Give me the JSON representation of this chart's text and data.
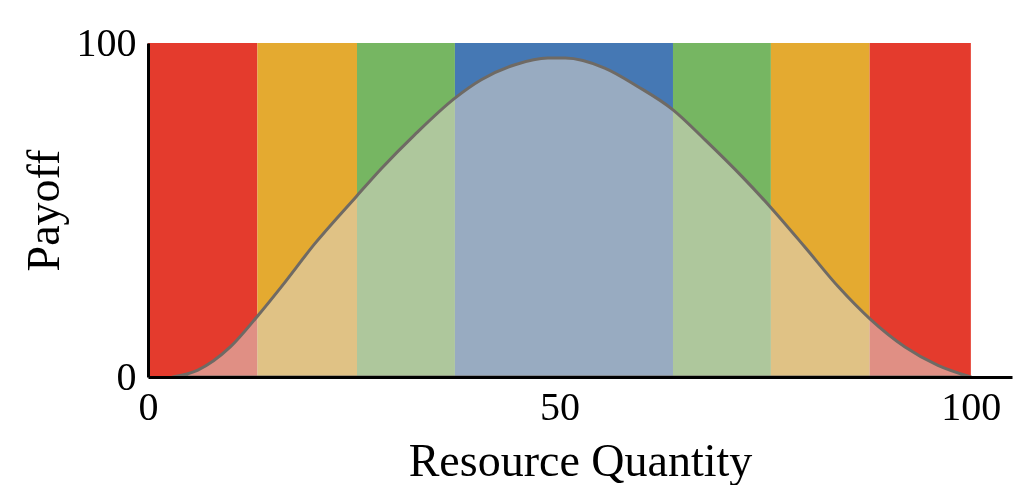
{
  "chart_data": {
    "type": "area",
    "xlabel": "Resource Quantity",
    "ylabel": "Payoff",
    "xlim": [
      0,
      105
    ],
    "ylim": [
      0,
      100
    ],
    "xticks": [
      0,
      50,
      100
    ],
    "yticks": [
      0,
      100
    ],
    "x": [
      3,
      6,
      10,
      13.4,
      16.2,
      20.3,
      25.3,
      28.4,
      32.4,
      37.3,
      40.5,
      44.6,
      48.6,
      50.7,
      55.5,
      59.5,
      63.8,
      67.7,
      72.2,
      75.6,
      79.8,
      83.9,
      87.7,
      92,
      96,
      100
    ],
    "values": [
      0,
      2,
      9,
      18.5,
      27,
      40,
      54,
      62.5,
      72.5,
      83.5,
      89,
      93.5,
      95.5,
      95.5,
      92.5,
      87,
      80,
      71,
      60,
      51,
      39,
      27,
      17.5,
      9,
      3.5,
      0
    ],
    "color": "#6f6a64",
    "bands": [
      {
        "axis": "x",
        "from": 0,
        "to": 13.3,
        "color": "#e43b2d"
      },
      {
        "axis": "x",
        "from": 13.3,
        "to": 25.4,
        "color": "#e4aa30"
      },
      {
        "axis": "x",
        "from": 25.4,
        "to": 37.3,
        "color": "#76b662"
      },
      {
        "axis": "x",
        "from": 37.3,
        "to": 63.8,
        "color": "#4578b4"
      },
      {
        "axis": "x",
        "from": 63.8,
        "to": 75.7,
        "color": "#76b662"
      },
      {
        "axis": "x",
        "from": 75.7,
        "to": 87.7,
        "color": "#e4aa30"
      },
      {
        "axis": "x",
        "from": 87.7,
        "to": 100,
        "color": "#e43b2d"
      }
    ]
  }
}
